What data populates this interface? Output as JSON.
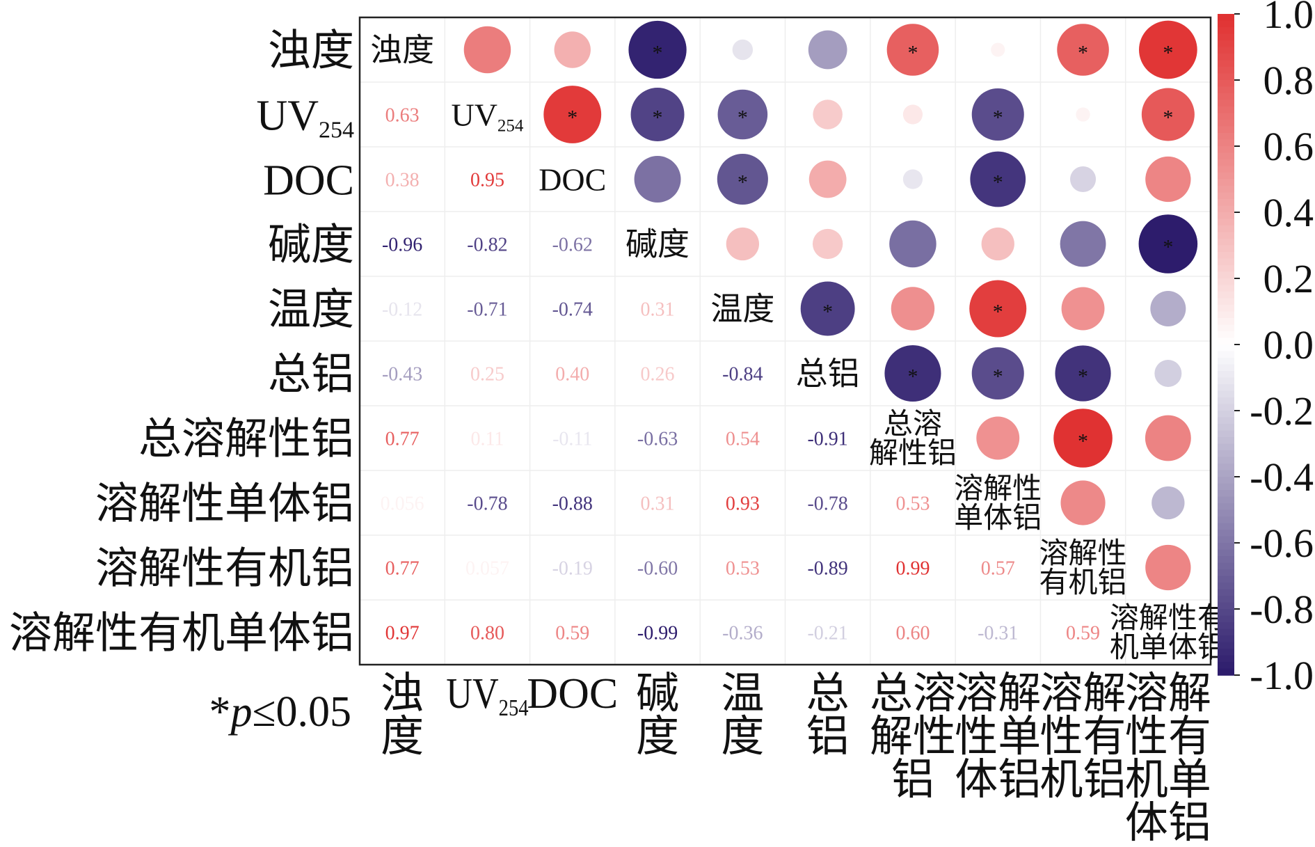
{
  "chart_data": {
    "type": "heatmap",
    "style": "correlation-matrix (circles upper triangle, numbers lower triangle)",
    "variables": [
      "浊度",
      "UV254",
      "DOC",
      "碱度",
      "温度",
      "总铝",
      "总溶解性铝",
      "溶解性单体铝",
      "溶解性有机铝",
      "溶解性有机单体铝"
    ],
    "diag_labels": [
      [
        "浊度"
      ],
      [
        "UV254"
      ],
      [
        "DOC"
      ],
      [
        "碱度"
      ],
      [
        "温度"
      ],
      [
        "总铝"
      ],
      [
        "总溶",
        "解性铝"
      ],
      [
        "溶解性",
        "单体铝"
      ],
      [
        "溶解性",
        "有机铝"
      ],
      [
        "溶解性有",
        "机单体铝"
      ]
    ],
    "x_tick_labels": [
      [
        "浊",
        "度"
      ],
      [
        "UV254"
      ],
      [
        "DOC"
      ],
      [
        "碱",
        "度"
      ],
      [
        "温",
        "度"
      ],
      [
        "总",
        "铝"
      ],
      [
        "总溶",
        "解性",
        "铝"
      ],
      [
        "溶解",
        "性单",
        "体铝"
      ],
      [
        "溶解",
        "性有",
        "机铝"
      ],
      [
        "溶解",
        "性有",
        "机单",
        "体铝"
      ]
    ],
    "lower_values": [
      [],
      [
        0.63
      ],
      [
        0.38,
        0.95
      ],
      [
        -0.96,
        -0.82,
        -0.62
      ],
      [
        -0.12,
        -0.71,
        -0.74,
        0.31
      ],
      [
        -0.43,
        0.25,
        0.4,
        0.26,
        -0.84
      ],
      [
        0.77,
        0.11,
        -0.11,
        -0.63,
        0.54,
        -0.91
      ],
      [
        0.056,
        -0.78,
        -0.88,
        0.31,
        0.93,
        -0.78,
        0.53
      ],
      [
        0.77,
        0.057,
        -0.19,
        -0.6,
        0.53,
        -0.89,
        0.99,
        0.57
      ],
      [
        0.97,
        0.8,
        0.59,
        -0.99,
        -0.36,
        -0.21,
        0.6,
        -0.31,
        0.59
      ]
    ],
    "lower_labels": [
      [],
      [
        "0.63"
      ],
      [
        "0.38",
        "0.95"
      ],
      [
        "-0.96",
        "-0.82",
        "-0.62"
      ],
      [
        "-0.12",
        "-0.71",
        "-0.74",
        "0.31"
      ],
      [
        "-0.43",
        "0.25",
        "0.40",
        "0.26",
        "-0.84"
      ],
      [
        "0.77",
        "0.11",
        "-0.11",
        "-0.63",
        "0.54",
        "-0.91"
      ],
      [
        "0.056",
        "-0.78",
        "-0.88",
        "0.31",
        "0.93",
        "-0.78",
        "0.53"
      ],
      [
        "0.77",
        "0.057",
        "-0.19",
        "-0.60",
        "0.53",
        "-0.89",
        "0.99",
        "0.57"
      ],
      [
        "0.97",
        "0.80",
        "0.59",
        "-0.99",
        "-0.36",
        "-0.21",
        "0.60",
        "-0.31",
        "0.59"
      ]
    ],
    "significant_pairs": [
      [
        0,
        3
      ],
      [
        0,
        6
      ],
      [
        0,
        8
      ],
      [
        0,
        9
      ],
      [
        1,
        2
      ],
      [
        1,
        3
      ],
      [
        1,
        4
      ],
      [
        1,
        7
      ],
      [
        1,
        9
      ],
      [
        2,
        4
      ],
      [
        2,
        7
      ],
      [
        3,
        9
      ],
      [
        4,
        5
      ],
      [
        4,
        7
      ],
      [
        5,
        6
      ],
      [
        5,
        7
      ],
      [
        5,
        8
      ],
      [
        6,
        8
      ]
    ],
    "significance_marker": "*",
    "significance_note": "*p≤0.05",
    "colorbar": {
      "range": [
        -1.0,
        1.0
      ],
      "ticks": [
        "1.0",
        "0.8",
        "0.6",
        "0.4",
        "0.2",
        "0.0",
        "-0.2",
        "-0.4",
        "-0.6",
        "-0.8",
        "-1.0"
      ],
      "positive_color": "#e03030",
      "neutral_color": "#ffffff",
      "negative_color": "#2b1a6b"
    }
  }
}
